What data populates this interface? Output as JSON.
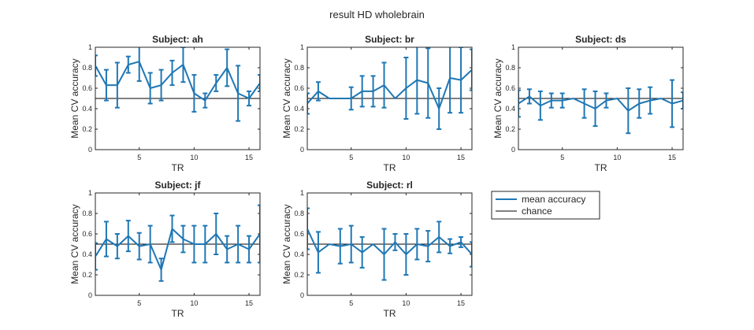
{
  "figure": {
    "title": "result HD wholebrain"
  },
  "legend": {
    "entries": [
      {
        "name": "mean accuracy",
        "color": "#1f77b4"
      },
      {
        "name": "chance",
        "color": "#000000"
      }
    ],
    "placement": "grid-cell-row2-col3"
  },
  "colors": {
    "series": "#1f77b4",
    "chance": "#000000",
    "axis": "#262626"
  },
  "chart_data": [
    {
      "type": "line",
      "title": "Subject: ah",
      "xlabel": "TR",
      "ylabel": "Mean CV accuracy",
      "xlim": [
        1,
        16
      ],
      "ylim": [
        0,
        1
      ],
      "xticks": [
        5,
        10,
        15
      ],
      "yticks": [
        0,
        0.2,
        0.4,
        0.6,
        0.8,
        1
      ],
      "chance": 0.5,
      "x": [
        1,
        2,
        3,
        4,
        5,
        6,
        7,
        8,
        9,
        10,
        11,
        12,
        13,
        14,
        15,
        16
      ],
      "series": [
        {
          "name": "mean accuracy",
          "values": [
            0.82,
            0.63,
            0.63,
            0.83,
            0.86,
            0.6,
            0.63,
            0.75,
            0.83,
            0.55,
            0.48,
            0.65,
            0.8,
            0.55,
            0.5,
            0.65
          ],
          "err": [
            0.1,
            0.15,
            0.22,
            0.08,
            0.19,
            0.15,
            0.15,
            0.12,
            0.17,
            0.18,
            0.07,
            0.08,
            0.18,
            0.27,
            0.07,
            0.08
          ]
        }
      ]
    },
    {
      "type": "line",
      "title": "Subject: br",
      "xlabel": "TR",
      "ylabel": "Mean CV accuracy",
      "xlim": [
        1,
        16
      ],
      "ylim": [
        0,
        1
      ],
      "xticks": [
        5,
        10,
        15
      ],
      "yticks": [
        0,
        0.2,
        0.4,
        0.6,
        0.8,
        1
      ],
      "chance": 0.5,
      "x": [
        1,
        2,
        3,
        4,
        5,
        6,
        7,
        8,
        9,
        10,
        11,
        12,
        13,
        14,
        15,
        16
      ],
      "series": [
        {
          "name": "mean accuracy",
          "values": [
            0.45,
            0.57,
            0.5,
            0.5,
            0.5,
            0.57,
            0.57,
            0.63,
            0.5,
            0.6,
            0.68,
            0.65,
            0.4,
            0.7,
            0.68,
            0.78
          ],
          "err": [
            0.1,
            0.09,
            0.0,
            0.0,
            0.11,
            0.15,
            0.15,
            0.22,
            0.0,
            0.3,
            0.33,
            0.34,
            0.2,
            0.34,
            0.32,
            0.2
          ]
        }
      ]
    },
    {
      "type": "line",
      "title": "Subject: ds",
      "xlabel": "TR",
      "ylabel": "Mean CV accuracy",
      "xlim": [
        1,
        16
      ],
      "ylim": [
        0,
        1
      ],
      "xticks": [
        5,
        10,
        15
      ],
      "yticks": [
        0,
        0.2,
        0.4,
        0.6,
        0.8,
        1
      ],
      "chance": 0.5,
      "x": [
        1,
        2,
        3,
        4,
        5,
        6,
        7,
        8,
        9,
        10,
        11,
        12,
        13,
        14,
        15,
        16
      ],
      "series": [
        {
          "name": "mean accuracy",
          "values": [
            0.45,
            0.52,
            0.43,
            0.48,
            0.48,
            0.5,
            0.45,
            0.4,
            0.48,
            0.5,
            0.38,
            0.45,
            0.48,
            0.5,
            0.45,
            0.48
          ],
          "err": [
            0.13,
            0.07,
            0.14,
            0.07,
            0.07,
            0.0,
            0.14,
            0.17,
            0.07,
            0.0,
            0.22,
            0.14,
            0.13,
            0.0,
            0.23,
            0.08
          ]
        }
      ]
    },
    {
      "type": "line",
      "title": "Subject: jf",
      "xlabel": "TR",
      "ylabel": "Mean CV accuracy",
      "xlim": [
        1,
        16
      ],
      "ylim": [
        0,
        1
      ],
      "xticks": [
        5,
        10,
        15
      ],
      "yticks": [
        0,
        0.2,
        0.4,
        0.6,
        0.8,
        1
      ],
      "chance": 0.5,
      "x": [
        1,
        2,
        3,
        4,
        5,
        6,
        7,
        8,
        9,
        10,
        11,
        12,
        13,
        14,
        15,
        16
      ],
      "series": [
        {
          "name": "mean accuracy",
          "values": [
            0.38,
            0.55,
            0.48,
            0.58,
            0.48,
            0.5,
            0.25,
            0.65,
            0.55,
            0.5,
            0.5,
            0.6,
            0.45,
            0.5,
            0.45,
            0.6
          ],
          "err": [
            0.13,
            0.17,
            0.12,
            0.15,
            0.13,
            0.18,
            0.11,
            0.13,
            0.13,
            0.18,
            0.18,
            0.2,
            0.13,
            0.18,
            0.13,
            0.28
          ]
        }
      ]
    },
    {
      "type": "line",
      "title": "Subject: rl",
      "xlabel": "TR",
      "ylabel": "Mean CV accuracy",
      "xlim": [
        1,
        16
      ],
      "ylim": [
        0,
        1
      ],
      "xticks": [
        5,
        10,
        15
      ],
      "yticks": [
        0,
        0.2,
        0.4,
        0.6,
        0.8,
        1
      ],
      "chance": 0.5,
      "x": [
        1,
        2,
        3,
        4,
        5,
        6,
        7,
        8,
        9,
        10,
        11,
        12,
        13,
        14,
        15,
        16
      ],
      "series": [
        {
          "name": "mean accuracy",
          "values": [
            0.65,
            0.42,
            0.5,
            0.48,
            0.5,
            0.42,
            0.5,
            0.4,
            0.52,
            0.4,
            0.5,
            0.48,
            0.57,
            0.48,
            0.52,
            0.4
          ],
          "err": [
            0.2,
            0.2,
            0.0,
            0.17,
            0.18,
            0.15,
            0.0,
            0.25,
            0.08,
            0.2,
            0.15,
            0.15,
            0.15,
            0.07,
            0.05,
            0.12
          ]
        }
      ]
    }
  ]
}
